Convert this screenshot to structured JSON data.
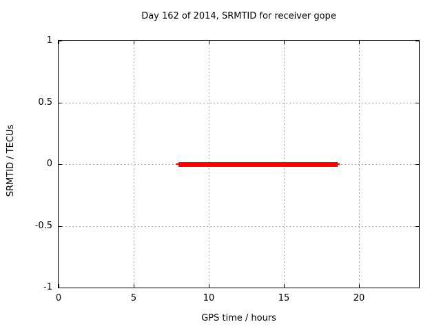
{
  "page": {
    "background": "#ffffff",
    "text_color": "#000000"
  },
  "chart_data": {
    "type": "line",
    "title": "Day 162 of 2014, SRMTID for receiver gope",
    "xlabel": "GPS time / hours",
    "ylabel": "SRMTID / TECUs",
    "xlim": [
      0,
      24
    ],
    "ylim": [
      -1,
      1
    ],
    "xticks": [
      {
        "v": 0,
        "label": "0"
      },
      {
        "v": 5,
        "label": "5"
      },
      {
        "v": 10,
        "label": "10"
      },
      {
        "v": 15,
        "label": "15"
      },
      {
        "v": 20,
        "label": "20"
      }
    ],
    "yticks": [
      {
        "v": -1,
        "label": "-1"
      },
      {
        "v": -0.5,
        "label": "-0.5"
      },
      {
        "v": 0,
        "label": "0"
      },
      {
        "v": 0.5,
        "label": "0.5"
      },
      {
        "v": 1,
        "label": "1"
      }
    ],
    "grid": true,
    "grid_style": "dashed",
    "grid_color": "#a6a6a6",
    "border_color": "#000000",
    "legend": "none",
    "series": [
      {
        "name": "SRMTID",
        "color": "#ff0000",
        "y_value": 0,
        "x_start": 8.0,
        "x_end": 18.6,
        "segments": [
          {
            "x1": 7.8,
            "x2": 18.7,
            "y": 0,
            "thickness_px": 2
          },
          {
            "x1": 8.0,
            "x2": 18.6,
            "y": 0,
            "thickness_px": 7
          }
        ]
      }
    ]
  }
}
